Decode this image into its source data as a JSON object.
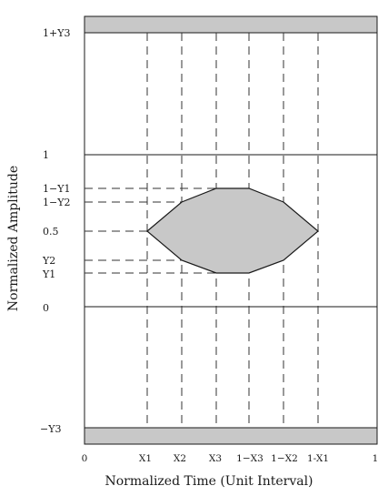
{
  "figure": {
    "x_axis_title": "Normalized Time (Unit Interval)",
    "y_axis_title": "Normalized Amplitude"
  },
  "y_labels": {
    "one_plus_y3": "1+Y3",
    "one": "1",
    "one_minus_y1": "1−Y1",
    "one_minus_y2": "1−Y2",
    "half": "0.5",
    "y2": "Y2",
    "y1": "Y1",
    "zero": "0",
    "minus_y3": "−Y3"
  },
  "x_labels": {
    "zero": "0",
    "x1": "X1",
    "x2": "X2",
    "x3": "X3",
    "one_minus_x3": "1−X3",
    "one_minus_x2": "1−X2",
    "one_minus_x1": "1-X1",
    "one": "1"
  },
  "colors": {
    "fill": "#c8c8c8",
    "stroke": "#1a1a1a",
    "dash": "#333333"
  }
}
